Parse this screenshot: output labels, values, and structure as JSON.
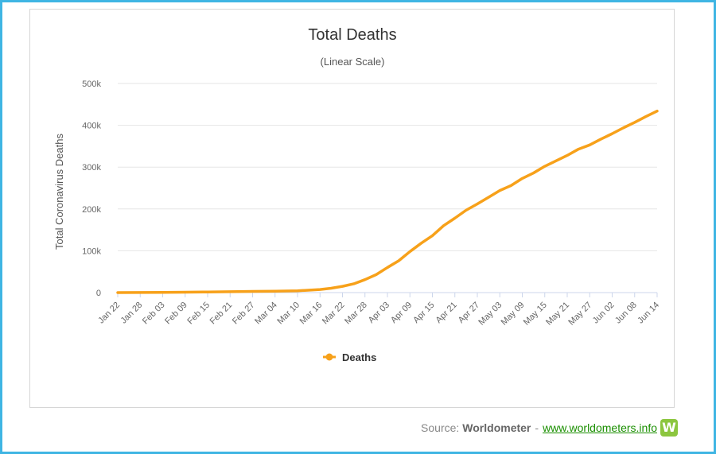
{
  "chart_data": {
    "type": "line",
    "title": "Total Deaths",
    "subtitle": "(Linear Scale)",
    "ylabel": "Total Coronavirus Deaths",
    "xlabel": "",
    "ylim": [
      0,
      500000
    ],
    "yticks": [
      0,
      100000,
      200000,
      300000,
      400000,
      500000
    ],
    "ytick_labels": [
      "0",
      "100k",
      "200k",
      "300k",
      "400k",
      "500k"
    ],
    "xtick_labels": [
      "Jan 22",
      "Jan 28",
      "Feb 03",
      "Feb 09",
      "Feb 15",
      "Feb 21",
      "Feb 27",
      "Mar 04",
      "Mar 10",
      "Mar 16",
      "Mar 22",
      "Mar 28",
      "Apr 03",
      "Apr 09",
      "Apr 15",
      "Apr 21",
      "Apr 27",
      "May 03",
      "May 09",
      "May 15",
      "May 21",
      "May 27",
      "Jun 02",
      "Jun 08",
      "Jun 14"
    ],
    "grid": true,
    "legend_position": "bottom-center",
    "series": [
      {
        "name": "Deaths",
        "color": "#f7a11a",
        "x": [
          "Jan 22",
          "Jan 28",
          "Feb 03",
          "Feb 09",
          "Feb 15",
          "Feb 21",
          "Feb 27",
          "Mar 04",
          "Mar 10",
          "Mar 16",
          "Mar 19",
          "Mar 22",
          "Mar 25",
          "Mar 28",
          "Mar 31",
          "Apr 03",
          "Apr 06",
          "Apr 09",
          "Apr 12",
          "Apr 15",
          "Apr 18",
          "Apr 21",
          "Apr 24",
          "Apr 27",
          "Apr 30",
          "May 03",
          "May 06",
          "May 09",
          "May 12",
          "May 15",
          "May 18",
          "May 21",
          "May 24",
          "May 27",
          "May 30",
          "Jun 02",
          "Jun 05",
          "Jun 08",
          "Jun 11",
          "Jun 14"
        ],
        "values": [
          17,
          133,
          427,
          906,
          1526,
          2250,
          2800,
          3300,
          4300,
          7400,
          10500,
          15000,
          21000,
          31000,
          43000,
          60000,
          76000,
          98000,
          118000,
          136000,
          160000,
          178000,
          197000,
          212000,
          228000,
          244000,
          256000,
          273000,
          286000,
          302000,
          315000,
          328000,
          343000,
          353000,
          367000,
          380000,
          394000,
          407000,
          421000,
          434000
        ]
      }
    ]
  },
  "source": {
    "prefix": "Source:",
    "brand": "Worldometer",
    "dash": "-",
    "link": "www.worldometers.info",
    "logo": "W"
  }
}
